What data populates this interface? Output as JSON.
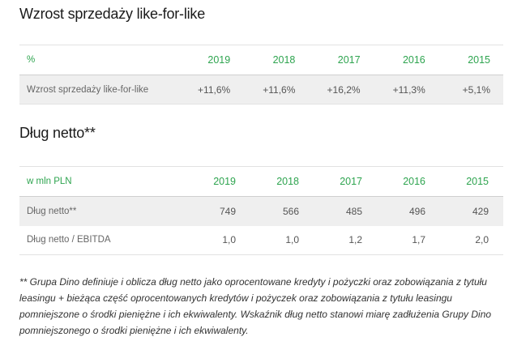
{
  "section1": {
    "title": "Wzrost sprzedaży like-for-like",
    "table": {
      "header": {
        "label": "%",
        "years": [
          "2019",
          "2018",
          "2017",
          "2016",
          "2015"
        ]
      },
      "rows": [
        {
          "label": "Wzrost sprzedaży like-for-like",
          "values": [
            "+11,6%",
            "+11,6%",
            "+16,2%",
            "+11,3%",
            "+5,1%"
          ]
        }
      ]
    }
  },
  "section2": {
    "title": "Dług netto**",
    "table": {
      "header": {
        "label": "w mln PLN",
        "years": [
          "2019",
          "2018",
          "2017",
          "2016",
          "2015"
        ]
      },
      "rows": [
        {
          "label": "Dług netto**",
          "values": [
            "749",
            "566",
            "485",
            "496",
            "429"
          ]
        },
        {
          "label": "Dług netto / EBITDA",
          "values": [
            "1,0",
            "1,0",
            "1,2",
            "1,7",
            "2,0"
          ]
        }
      ]
    }
  },
  "accent_color": "#2ea44f",
  "footnote": "** Grupa Dino definiuje i oblicza dług netto jako oprocentowane kredyty i pożyczki oraz zobowiązania z tytułu leasingu + bieżąca część oprocentowanych kredytów i pożyczek oraz zobowiązania z tytułu leasingu pomniejszone o środki pieniężne i ich ekwiwalenty. Wskaźnik dług netto stanowi miarę zadłużenia Grupy Dino pomniejszonego o środki pieniężne i ich ekwiwalenty."
}
